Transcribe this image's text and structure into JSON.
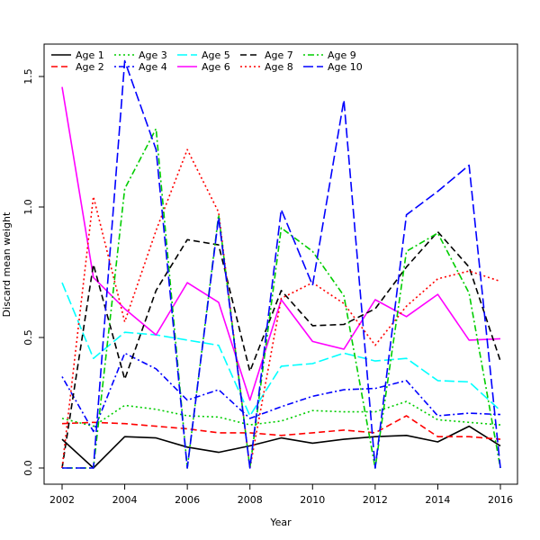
{
  "chart_data": {
    "type": "line",
    "title": "",
    "xlabel": "Year",
    "ylabel": "Discard mean weight",
    "xlim": [
      2002,
      2016
    ],
    "ylim": [
      0.0,
      1.5
    ],
    "xticks": [
      2002,
      2004,
      2006,
      2008,
      2010,
      2012,
      2014,
      2016
    ],
    "yticks": [
      0.0,
      0.5,
      1.0,
      1.5
    ],
    "xtick_labels": [
      "2002",
      "2004",
      "2006",
      "2008",
      "2010",
      "2012",
      "2014",
      "2016"
    ],
    "ytick_labels": [
      "0.0",
      "0.5",
      "1.0",
      "1.5"
    ],
    "grid": false,
    "legend_position": "top-left",
    "x": [
      2002,
      2003,
      2004,
      2005,
      2006,
      2007,
      2008,
      2009,
      2010,
      2011,
      2012,
      2013,
      2014,
      2015,
      2016
    ],
    "series": [
      {
        "name": "Age 1",
        "color": "#000000",
        "dash": "solid",
        "values": [
          0.11,
          0.0,
          0.12,
          0.115,
          0.08,
          0.06,
          0.085,
          0.115,
          0.095,
          0.11,
          0.12,
          0.125,
          0.1,
          0.16,
          0.085
        ]
      },
      {
        "name": "Age 2",
        "color": "#ff0000",
        "dash": "dashed",
        "values": [
          0.17,
          0.175,
          0.17,
          0.16,
          0.15,
          0.135,
          0.135,
          0.125,
          0.135,
          0.145,
          0.135,
          0.2,
          0.12,
          0.12,
          0.11
        ]
      },
      {
        "name": "Age 3",
        "color": "#00cd00",
        "dash": "dotted",
        "values": [
          0.19,
          0.16,
          0.24,
          0.225,
          0.2,
          0.195,
          0.165,
          0.18,
          0.22,
          0.215,
          0.215,
          0.255,
          0.185,
          0.175,
          0.165
        ]
      },
      {
        "name": "Age 4",
        "color": "#0000ff",
        "dash": "dotdash",
        "values": [
          0.35,
          0.14,
          0.44,
          0.38,
          0.26,
          0.3,
          0.19,
          0.235,
          0.275,
          0.3,
          0.305,
          0.335,
          0.2,
          0.21,
          0.205
        ]
      },
      {
        "name": "Age 5",
        "color": "#00ffff",
        "dash": "longdash",
        "values": [
          0.71,
          0.42,
          0.52,
          0.51,
          0.49,
          0.47,
          0.2,
          0.39,
          0.4,
          0.44,
          0.41,
          0.42,
          0.335,
          0.33,
          0.22
        ]
      },
      {
        "name": "Age 6",
        "color": "#ff00ff",
        "dash": "solid",
        "values": [
          1.46,
          0.73,
          0.61,
          0.51,
          0.71,
          0.635,
          0.26,
          0.645,
          0.485,
          0.455,
          0.645,
          0.58,
          0.665,
          0.49,
          0.495
        ]
      },
      {
        "name": "Age 7",
        "color": "#000000",
        "dash": "dashed",
        "values": [
          0.0,
          0.78,
          0.34,
          0.68,
          0.875,
          0.855,
          0.37,
          0.68,
          0.545,
          0.55,
          0.61,
          0.77,
          0.905,
          0.77,
          0.41
        ]
      },
      {
        "name": "Age 8",
        "color": "#ff0000",
        "dash": "dotted",
        "values": [
          0.0,
          1.04,
          0.56,
          0.91,
          1.22,
          0.98,
          0.0,
          0.65,
          0.71,
          0.63,
          0.47,
          0.62,
          0.725,
          0.755,
          0.715
        ]
      },
      {
        "name": "Age 9",
        "color": "#00cd00",
        "dash": "dotdash",
        "values": [
          0.0,
          0.0,
          1.07,
          1.3,
          0.0,
          0.97,
          0.0,
          0.92,
          0.83,
          0.66,
          0.0,
          0.83,
          0.9,
          0.67,
          0.0
        ]
      },
      {
        "name": "Age 10",
        "color": "#0000ff",
        "dash": "longdash",
        "values": [
          0.0,
          0.0,
          1.56,
          1.22,
          0.0,
          0.96,
          0.0,
          0.99,
          0.7,
          1.41,
          0.0,
          0.97,
          1.06,
          1.16,
          0.0
        ]
      }
    ]
  }
}
